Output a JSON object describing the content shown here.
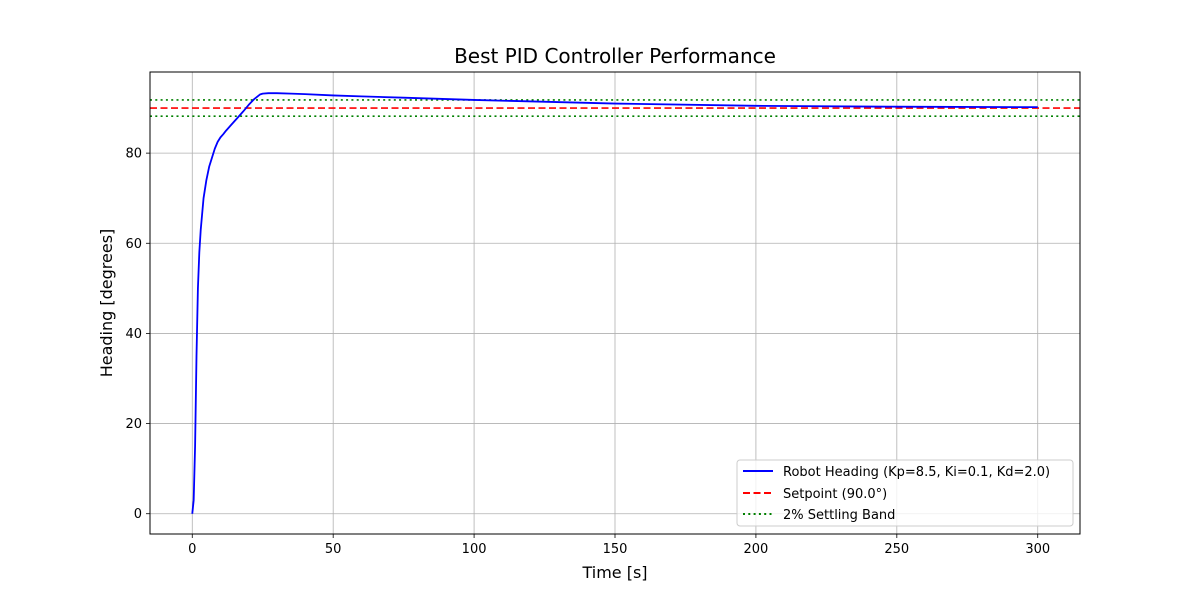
{
  "chart_data": {
    "type": "line",
    "title": "Best PID Controller Performance",
    "xlabel": "Time [s]",
    "ylabel": "Heading [degrees]",
    "xlim": [
      -15,
      315
    ],
    "ylim": [
      -4.5,
      98
    ],
    "xticks": [
      0,
      50,
      100,
      150,
      200,
      250,
      300
    ],
    "yticks": [
      0,
      20,
      40,
      60,
      80
    ],
    "grid": true,
    "legend_position": "lower right",
    "series": [
      {
        "name": "Robot Heading (Kp=8.5, Ki=0.1, Kd=2.0)",
        "color": "#0000ff",
        "style": "solid",
        "x": [
          0,
          0.5,
          1,
          1.5,
          2,
          2.5,
          3,
          4,
          5,
          6,
          7,
          8,
          9,
          10,
          11,
          12,
          14,
          16,
          18,
          20,
          22,
          24,
          25,
          27,
          30,
          35,
          40,
          50,
          60,
          75,
          100,
          150,
          200,
          250,
          300
        ],
        "y": [
          0,
          3,
          15,
          35,
          50,
          58,
          63,
          70,
          74,
          77,
          79,
          81,
          82.5,
          83.5,
          84.2,
          85,
          86.4,
          87.8,
          89.2,
          90.7,
          92,
          93,
          93.2,
          93.3,
          93.3,
          93.2,
          93.1,
          92.8,
          92.6,
          92.3,
          91.8,
          91,
          90.5,
          90.3,
          90.2
        ]
      },
      {
        "name": "Setpoint (90.0°)",
        "color": "#ff0000",
        "style": "dashed",
        "x": [
          -15,
          315
        ],
        "y": [
          90,
          90
        ]
      },
      {
        "name": "2% Settling Band",
        "color": "#008000",
        "style": "dotted",
        "x": [
          -15,
          315
        ],
        "y": [
          91.8,
          91.8
        ]
      },
      {
        "name": "",
        "color": "#008000",
        "style": "dotted",
        "x": [
          -15,
          315
        ],
        "y": [
          88.2,
          88.2
        ]
      }
    ]
  },
  "legend": {
    "items": [
      {
        "label": "Robot Heading (Kp=8.5, Ki=0.1, Kd=2.0)",
        "color": "#0000ff",
        "style": "solid"
      },
      {
        "label": "Setpoint (90.0°)",
        "color": "#ff0000",
        "style": "dashed"
      },
      {
        "label": "2% Settling Band",
        "color": "#008000",
        "style": "dotted"
      }
    ]
  }
}
